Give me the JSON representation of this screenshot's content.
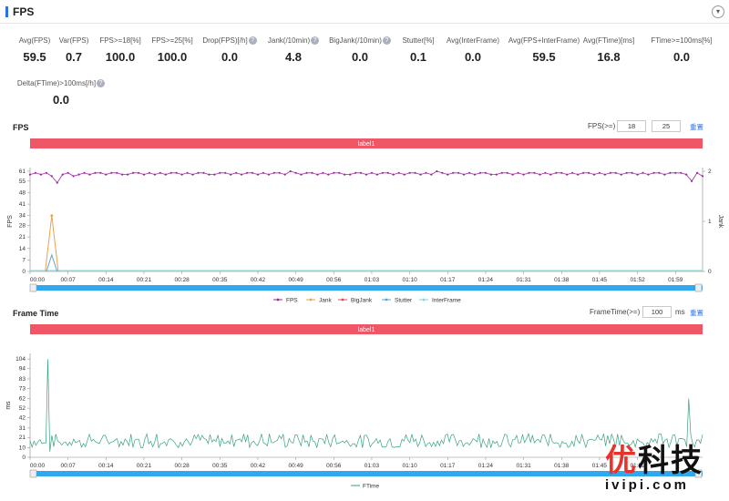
{
  "header": {
    "title": "FPS",
    "collapse_icon": "chevron-down-icon"
  },
  "metrics": [
    {
      "label": "Avg(FPS)",
      "value": "59.5",
      "help": false
    },
    {
      "label": "Var(FPS)",
      "value": "0.7",
      "help": false
    },
    {
      "label": "FPS>=18[%]",
      "value": "100.0",
      "help": false
    },
    {
      "label": "FPS>=25[%]",
      "value": "100.0",
      "help": false
    },
    {
      "label": "Drop(FPS)[/h]",
      "value": "0.0",
      "help": true
    },
    {
      "label": "Jank(/10min)",
      "value": "4.8",
      "help": true
    },
    {
      "label": "BigJank(/10min)",
      "value": "0.0",
      "help": true
    },
    {
      "label": "Stutter[%]",
      "value": "0.1",
      "help": false
    },
    {
      "label": "Avg(InterFrame)",
      "value": "0.0",
      "help": false
    },
    {
      "label": "Avg(FPS+InterFrame)",
      "value": "59.5",
      "help": false
    },
    {
      "label": "Avg(FTime)[ms]",
      "value": "16.8",
      "help": false
    },
    {
      "label": "FTime>=100ms[%]",
      "value": "0.0",
      "help": false
    },
    {
      "label": "Delta(FTime)>100ms[/h]",
      "value": "0.0",
      "help": true
    }
  ],
  "fps_section": {
    "title": "FPS",
    "threshold_label": "FPS(>=)",
    "threshold_values": [
      "18",
      "25"
    ],
    "reset_label": "重置"
  },
  "ft_section": {
    "title": "Frame Time",
    "threshold_label": "FrameTime(>=)",
    "threshold_value": "100",
    "unit": "ms",
    "reset_label": "重置"
  },
  "colors": {
    "label_bar": "#ef5766",
    "fps": "#9c2a9c",
    "jank": "#f0a04b",
    "bigjank": "#e8475a",
    "stutter": "#5ba4cf",
    "interframe": "#7ed6e6",
    "ftime": "#3aa17e",
    "slider": "#2ea8ee"
  },
  "chart_data": [
    {
      "type": "line",
      "title": "",
      "label_bar": "label1",
      "x_ticks": [
        "00:00",
        "00:07",
        "00:14",
        "00:21",
        "00:28",
        "00:35",
        "00:42",
        "00:49",
        "00:56",
        "01:03",
        "01:10",
        "01:17",
        "01:24",
        "01:31",
        "01:38",
        "01:45",
        "01:52",
        "01:59"
      ],
      "x_range_seconds": [
        0,
        124
      ],
      "ylabel": "FPS",
      "y2label": "Jank",
      "yticks": [
        0,
        7,
        14,
        21,
        28,
        34,
        41,
        48,
        55,
        61
      ],
      "y2ticks": [
        0,
        1,
        2
      ],
      "legend": [
        "FPS",
        "Jank",
        "BigJank",
        "Stutter",
        "InterFrame"
      ],
      "series": [
        {
          "name": "FPS",
          "values": [
            59,
            60,
            59,
            60,
            58,
            54,
            59,
            60,
            58,
            59,
            60,
            59,
            60,
            60,
            59,
            60,
            60,
            59,
            59,
            60,
            60,
            59,
            60,
            59,
            60,
            59,
            60,
            60,
            59,
            60,
            59,
            60,
            60,
            59,
            59,
            60,
            60,
            59,
            60,
            59,
            60,
            60,
            59,
            60,
            59,
            60,
            60,
            59,
            61,
            60,
            59,
            60,
            60,
            59,
            60,
            59,
            60,
            60,
            59,
            59,
            60,
            60,
            59,
            60,
            59,
            60,
            60,
            59,
            60,
            59,
            60,
            60,
            59,
            60,
            59,
            61,
            60,
            59,
            60,
            60,
            59,
            60,
            59,
            60,
            60,
            59,
            59,
            60,
            60,
            59,
            60,
            59,
            60,
            60,
            59,
            60,
            59,
            60,
            60,
            59,
            60,
            59,
            60,
            60,
            59,
            60,
            59,
            60,
            60,
            59,
            60,
            60,
            59,
            60,
            59,
            60,
            60,
            59,
            60,
            60,
            60,
            59,
            55,
            60,
            58
          ]
        },
        {
          "name": "Jank",
          "spikes": [
            {
              "x": 4,
              "value": 34
            }
          ]
        },
        {
          "name": "BigJank",
          "values_constant": 0
        },
        {
          "name": "Stutter",
          "spikes": [
            {
              "x": 4,
              "value": 10
            }
          ]
        },
        {
          "name": "InterFrame",
          "values_constant": 0
        }
      ]
    },
    {
      "type": "line",
      "title": "",
      "label_bar": "label1",
      "x_ticks": [
        "00:00",
        "00:07",
        "00:14",
        "00:21",
        "00:28",
        "00:35",
        "00:42",
        "00:49",
        "00:56",
        "01:03",
        "01:10",
        "01:17",
        "01:24",
        "01:31",
        "01:38",
        "01:45",
        "01:52"
      ],
      "x_range_seconds": [
        0,
        124
      ],
      "ylabel": "ms",
      "yticks": [
        0,
        10,
        21,
        31,
        42,
        52,
        62,
        73,
        83,
        94,
        104
      ],
      "legend": [
        "FTime"
      ],
      "series": [
        {
          "name": "FTime",
          "baseline_range": [
            10,
            25
          ],
          "spikes": [
            {
              "x": 3.2,
              "value": 104
            },
            {
              "x": 3.6,
              "value": 6
            },
            {
              "x": 121.5,
              "value": 62
            }
          ]
        }
      ]
    }
  ],
  "watermark": {
    "cn_red": "优",
    "cn_black": "科技",
    "en": "ivipi.com"
  }
}
